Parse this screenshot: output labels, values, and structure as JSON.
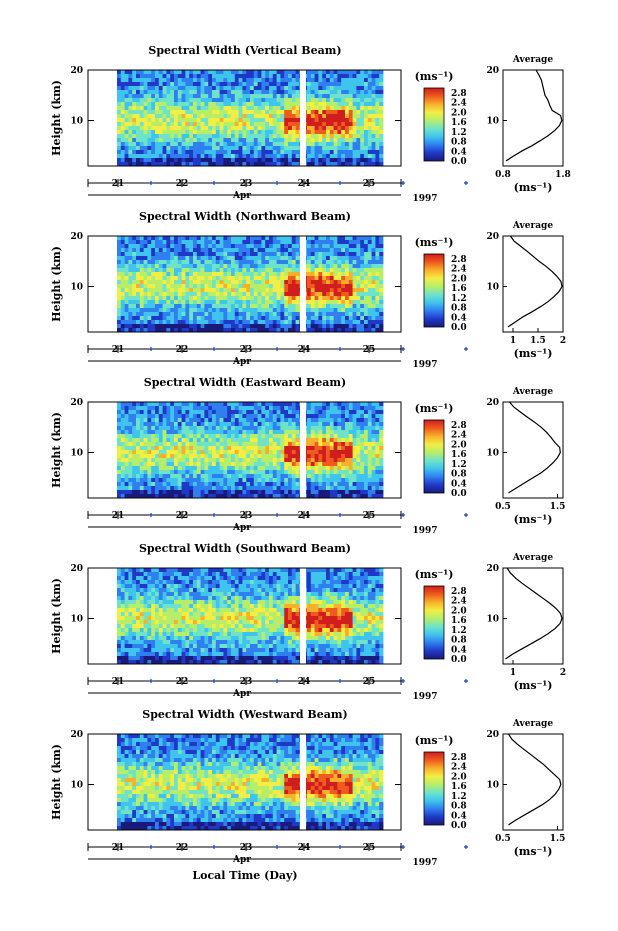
{
  "figure": {
    "xlabel": "Local Time (Day)",
    "month_label": "Apr",
    "year_label": "1997",
    "ylabel": "Height (km)",
    "unit": "(ms⁻¹)",
    "average_title": "Average",
    "average_xlabel": "(ms⁻¹)",
    "colormap": [
      "#1a1a7a",
      "#2038c8",
      "#2f7ff0",
      "#3fc4ee",
      "#6fe3c8",
      "#b6ee6a",
      "#f2ee44",
      "#f8b02c",
      "#ef5a1e",
      "#d01e1e"
    ]
  },
  "chart_data": [
    {
      "type": "heatmap",
      "title": "Spectral Width (Vertical Beam)",
      "ylabel": "Height (km)",
      "xlabel": "Apr",
      "x_ticks": [
        "21",
        "22",
        "23",
        "24",
        "25"
      ],
      "y_ticks": [
        "20",
        "10"
      ],
      "ylim": [
        1,
        20
      ],
      "colorbar": {
        "label": "(ms⁻¹)",
        "ticks": [
          "2.8",
          "2.4",
          "2.0",
          "1.6",
          "1.2",
          "0.8",
          "0.4",
          "0.0"
        ],
        "range": [
          0.0,
          2.8
        ]
      },
      "average": {
        "title": "Average",
        "xlabel": "(ms⁻¹)",
        "x_ticks": [
          "0.8",
          "1.8"
        ],
        "xlim": [
          0.8,
          1.8
        ],
        "height": [
          2,
          3,
          4,
          5,
          6,
          7,
          8,
          9,
          10,
          11,
          12,
          13,
          14,
          15,
          16,
          17,
          18,
          19,
          20
        ],
        "values": [
          0.85,
          0.98,
          1.12,
          1.28,
          1.42,
          1.55,
          1.66,
          1.74,
          1.78,
          1.76,
          1.62,
          1.58,
          1.55,
          1.5,
          1.48,
          1.46,
          1.44,
          1.4,
          1.35
        ]
      }
    },
    {
      "type": "heatmap",
      "title": "Spectral Width (Northward Beam)",
      "ylabel": "Height (km)",
      "xlabel": "Apr",
      "x_ticks": [
        "21",
        "22",
        "23",
        "24",
        "25"
      ],
      "y_ticks": [
        "20",
        "10"
      ],
      "ylim": [
        1,
        20
      ],
      "colorbar": {
        "label": "(ms⁻¹)",
        "ticks": [
          "2.8",
          "2.4",
          "2.0",
          "1.6",
          "1.2",
          "0.8",
          "0.4",
          "0.0"
        ],
        "range": [
          0.0,
          2.8
        ]
      },
      "average": {
        "title": "Average",
        "xlabel": "(ms⁻¹)",
        "x_ticks": [
          "1",
          "1.5",
          "2"
        ],
        "xlim": [
          0.8,
          2.0
        ],
        "height": [
          2,
          3,
          4,
          5,
          6,
          7,
          8,
          9,
          10,
          11,
          12,
          13,
          14,
          15,
          16,
          17,
          18,
          19,
          20
        ],
        "values": [
          0.9,
          1.05,
          1.2,
          1.38,
          1.55,
          1.7,
          1.82,
          1.92,
          1.98,
          1.96,
          1.88,
          1.78,
          1.66,
          1.52,
          1.4,
          1.28,
          1.15,
          1.02,
          0.95
        ]
      }
    },
    {
      "type": "heatmap",
      "title": "Spectral Width (Eastward Beam)",
      "ylabel": "Height (km)",
      "xlabel": "Apr",
      "x_ticks": [
        "21",
        "22",
        "23",
        "24",
        "25"
      ],
      "y_ticks": [
        "20",
        "10"
      ],
      "ylim": [
        1,
        20
      ],
      "colorbar": {
        "label": "(ms⁻¹)",
        "ticks": [
          "2.8",
          "2.4",
          "2.0",
          "1.6",
          "1.2",
          "0.8",
          "0.4",
          "0.0"
        ],
        "range": [
          0.0,
          2.8
        ]
      },
      "average": {
        "title": "Average",
        "xlabel": "(ms⁻¹)",
        "x_ticks": [
          "0.5",
          "1.5"
        ],
        "xlim": [
          0.5,
          1.6
        ],
        "height": [
          2,
          3,
          4,
          5,
          6,
          7,
          8,
          9,
          10,
          11,
          12,
          13,
          14,
          15,
          16,
          17,
          18,
          19,
          20
        ],
        "values": [
          0.6,
          0.75,
          0.9,
          1.05,
          1.2,
          1.32,
          1.42,
          1.5,
          1.55,
          1.54,
          1.45,
          1.38,
          1.3,
          1.2,
          1.08,
          0.95,
          0.82,
          0.7,
          0.62
        ]
      }
    },
    {
      "type": "heatmap",
      "title": "Spectral Width (Southward Beam)",
      "ylabel": "Height (km)",
      "xlabel": "Apr",
      "x_ticks": [
        "21",
        "22",
        "23",
        "24",
        "25"
      ],
      "y_ticks": [
        "20",
        "10"
      ],
      "ylim": [
        1,
        20
      ],
      "colorbar": {
        "label": "(ms⁻¹)",
        "ticks": [
          "2.8",
          "2.4",
          "2.0",
          "1.6",
          "1.2",
          "0.8",
          "0.4",
          "0.0"
        ],
        "range": [
          0.0,
          2.8
        ]
      },
      "average": {
        "title": "Average",
        "xlabel": "(ms⁻¹)",
        "x_ticks": [
          "1",
          "2"
        ],
        "xlim": [
          0.8,
          2.0
        ],
        "height": [
          2,
          3,
          4,
          5,
          6,
          7,
          8,
          9,
          10,
          11,
          12,
          13,
          14,
          15,
          16,
          17,
          18,
          19,
          20
        ],
        "values": [
          0.85,
          1.0,
          1.18,
          1.36,
          1.54,
          1.7,
          1.84,
          1.94,
          1.98,
          1.95,
          1.86,
          1.74,
          1.6,
          1.46,
          1.32,
          1.18,
          1.05,
          0.95,
          0.88
        ]
      }
    },
    {
      "type": "heatmap",
      "title": "Spectral Width (Westward Beam)",
      "ylabel": "Height (km)",
      "xlabel": "Apr",
      "x_ticks": [
        "21",
        "22",
        "23",
        "24",
        "25"
      ],
      "y_ticks": [
        "20",
        "10"
      ],
      "ylim": [
        1,
        20
      ],
      "colorbar": {
        "label": "(ms⁻¹)",
        "ticks": [
          "2.8",
          "2.4",
          "2.0",
          "1.6",
          "1.2",
          "0.8",
          "0.4",
          "0.0"
        ],
        "range": [
          0.0,
          2.8
        ]
      },
      "average": {
        "title": "Average",
        "xlabel": "(ms⁻¹)",
        "x_ticks": [
          "0.5",
          "1.5"
        ],
        "xlim": [
          0.5,
          1.6
        ],
        "height": [
          2,
          3,
          4,
          5,
          6,
          7,
          8,
          9,
          10,
          11,
          12,
          13,
          14,
          15,
          16,
          17,
          18,
          19,
          20
        ],
        "values": [
          0.6,
          0.74,
          0.9,
          1.06,
          1.22,
          1.35,
          1.45,
          1.52,
          1.56,
          1.54,
          1.44,
          1.34,
          1.24,
          1.12,
          1.0,
          0.88,
          0.76,
          0.66,
          0.6
        ]
      }
    }
  ]
}
